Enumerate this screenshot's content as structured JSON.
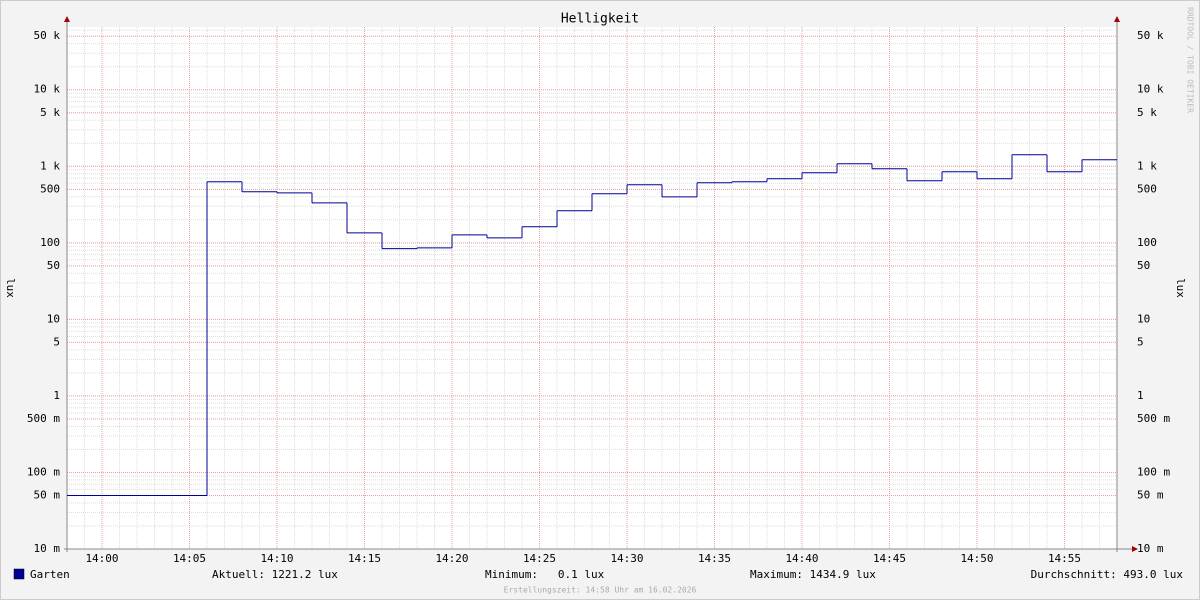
{
  "chart_data": {
    "type": "line",
    "step": true,
    "title": "Helligkeit",
    "y_label": "lux",
    "log_scale": true,
    "grid": true,
    "x": [
      "13:58",
      "14:06",
      "14:08",
      "14:10",
      "14:12",
      "14:14",
      "14:16",
      "14:18",
      "14:20",
      "14:22",
      "14:24",
      "14:26",
      "14:28",
      "14:30",
      "14:32",
      "14:34",
      "14:36",
      "14:38",
      "14:40",
      "14:42",
      "14:44",
      "14:46",
      "14:48",
      "14:50",
      "14:52",
      "14:54",
      "14:56"
    ],
    "xlim": [
      "13:58",
      "14:58"
    ],
    "xticks": [
      "14:00",
      "14:05",
      "14:10",
      "14:15",
      "14:20",
      "14:25",
      "14:30",
      "14:35",
      "14:40",
      "14:45",
      "14:50",
      "14:55"
    ],
    "series": [
      {
        "name": "Garten",
        "color": "#000099",
        "values": [
          0.05,
          627,
          464,
          450,
          333,
          135,
          84,
          86,
          127,
          116,
          162,
          262,
          437,
          573,
          399,
          609,
          627,
          687,
          823,
          1079,
          927,
          646,
          847,
          687,
          1413,
          847,
          1216
        ]
      }
    ],
    "ylim": [
      0.01,
      66000
    ],
    "yticks": [
      {
        "value": 0.01,
        "label": "10 m"
      },
      {
        "value": 0.05,
        "label": "50 m"
      },
      {
        "value": 0.1,
        "label": "100 m"
      },
      {
        "value": 0.5,
        "label": "500 m"
      },
      1,
      5,
      10,
      50,
      100,
      500,
      {
        "value": 1000,
        "label": "1 k"
      },
      {
        "value": 5000,
        "label": "5 k"
      },
      {
        "value": 10000,
        "label": "10 k"
      },
      {
        "value": 50000,
        "label": "50 k"
      }
    ],
    "stats": [
      "Aktuell: 1221.2 lux",
      "Minimum:   0.1 lux",
      "Maximum: 1434.9 lux",
      "Durchschnitt: 493.0 lux"
    ],
    "footer": "Erstellungszeit: 14:58 Uhr am 16.02.2026",
    "watermark": "RRDTOOL / TOBI OETIKER"
  }
}
